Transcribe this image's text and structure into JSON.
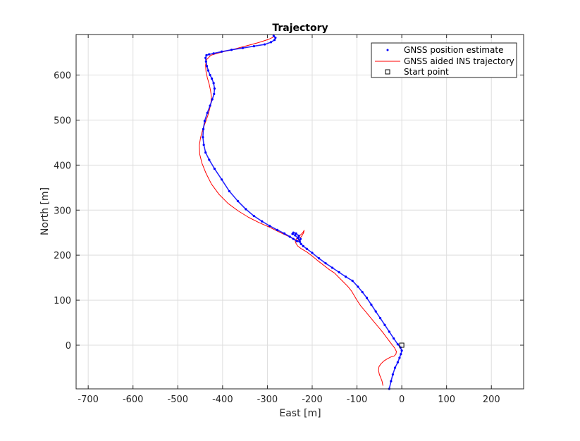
{
  "chart_data": {
    "type": "line",
    "title": "Trajectory",
    "xlabel": "East [m]",
    "ylabel": "North [m]",
    "xlim": [
      -727,
      272
    ],
    "ylim": [
      -97,
      690
    ],
    "x_ticks": [
      -700,
      -600,
      -500,
      -400,
      -300,
      -200,
      -100,
      0,
      100,
      200
    ],
    "y_ticks": [
      0,
      100,
      200,
      300,
      400,
      500,
      600
    ],
    "x_tick_labels": [
      "-700",
      "-600",
      "-500",
      "-400",
      "-300",
      "-200",
      "-100",
      "0",
      "100",
      "200"
    ],
    "y_tick_labels": [
      "0",
      "100",
      "200",
      "300",
      "400",
      "500",
      "600"
    ],
    "grid": true,
    "legend_position": "top-right",
    "colors": {
      "gnss": "#0000ff",
      "ins": "#ff0000",
      "start": "#000000"
    },
    "series": [
      {
        "name": "GNSS position estimate",
        "style": "dots",
        "x": [
          -28,
          -24,
          -20,
          -15,
          -9,
          -5,
          -2,
          0,
          -3,
          -9,
          -18,
          -28,
          -38,
          -48,
          -58,
          -68,
          -78,
          -88,
          -98,
          -110,
          -125,
          -140,
          -155,
          -170,
          -185,
          -200,
          -212,
          -220,
          -225,
          -228,
          -232,
          -238,
          -244,
          -242,
          -236,
          -230,
          -226,
          -228,
          -234,
          -242,
          -250,
          -262,
          -278,
          -295,
          -312,
          -330,
          -348,
          -366,
          -385,
          -402,
          -418,
          -430,
          -438,
          -442,
          -444,
          -443,
          -440,
          -434,
          -428,
          -423,
          -419,
          -418,
          -420,
          -424,
          -428,
          -432,
          -435,
          -437,
          -438,
          -436,
          -430,
          -420,
          -402,
          -380,
          -355,
          -330,
          -306,
          -292,
          -284,
          -282,
          -286
        ],
        "y": [
          -97,
          -80,
          -65,
          -50,
          -38,
          -28,
          -20,
          -12,
          -5,
          2,
          15,
          30,
          45,
          60,
          75,
          90,
          105,
          118,
          130,
          143,
          152,
          162,
          172,
          182,
          193,
          205,
          214,
          220,
          225,
          231,
          238,
          244,
          247,
          250,
          248,
          243,
          236,
          230,
          231,
          236,
          241,
          248,
          256,
          265,
          275,
          287,
          302,
          320,
          342,
          368,
          392,
          412,
          428,
          445,
          462,
          480,
          498,
          516,
          532,
          546,
          558,
          570,
          582,
          592,
          600,
          610,
          620,
          630,
          638,
          644,
          646,
          648,
          652,
          656,
          660,
          664,
          668,
          673,
          678,
          683,
          687
        ]
      },
      {
        "name": "GNSS aided INS trajectory",
        "style": "line",
        "x": [
          -42,
          -44,
          -47,
          -50,
          -52,
          -51,
          -47,
          -40,
          -32,
          -24,
          -17,
          -13,
          -12,
          -16,
          -24,
          -33,
          -42,
          -52,
          -62,
          -72,
          -82,
          -92,
          -100,
          -106,
          -112,
          -120,
          -130,
          -140,
          -150,
          -162,
          -175,
          -188,
          -200,
          -212,
          -224,
          -232,
          -236,
          -238,
          -234,
          -227,
          -221,
          -218,
          -219,
          -223,
          -228,
          -232,
          -238,
          -246,
          -258,
          -275,
          -295,
          -318,
          -342,
          -365,
          -388,
          -408,
          -425,
          -437,
          -446,
          -451,
          -452,
          -449,
          -444,
          -438,
          -433,
          -429,
          -426,
          -425,
          -427,
          -430,
          -434,
          -437,
          -438,
          -436,
          -426,
          -406,
          -380,
          -350,
          -320,
          -298,
          -287,
          -286
        ],
        "y": [
          -90,
          -80,
          -72,
          -65,
          -56,
          -48,
          -42,
          -35,
          -30,
          -26,
          -24,
          -20,
          -14,
          -6,
          4,
          16,
          28,
          40,
          52,
          64,
          76,
          88,
          100,
          110,
          120,
          130,
          140,
          150,
          160,
          168,
          178,
          188,
          198,
          207,
          214,
          220,
          226,
          232,
          238,
          244,
          250,
          255,
          250,
          243,
          236,
          232,
          234,
          239,
          244,
          252,
          262,
          272,
          284,
          298,
          315,
          335,
          358,
          382,
          404,
          424,
          444,
          462,
          480,
          496,
          510,
          524,
          538,
          552,
          566,
          580,
          594,
          608,
          622,
          634,
          644,
          650,
          656,
          664,
          672,
          679,
          684,
          689
        ]
      },
      {
        "name": "Start point",
        "style": "square",
        "x": [
          0
        ],
        "y": [
          0
        ]
      }
    ]
  }
}
